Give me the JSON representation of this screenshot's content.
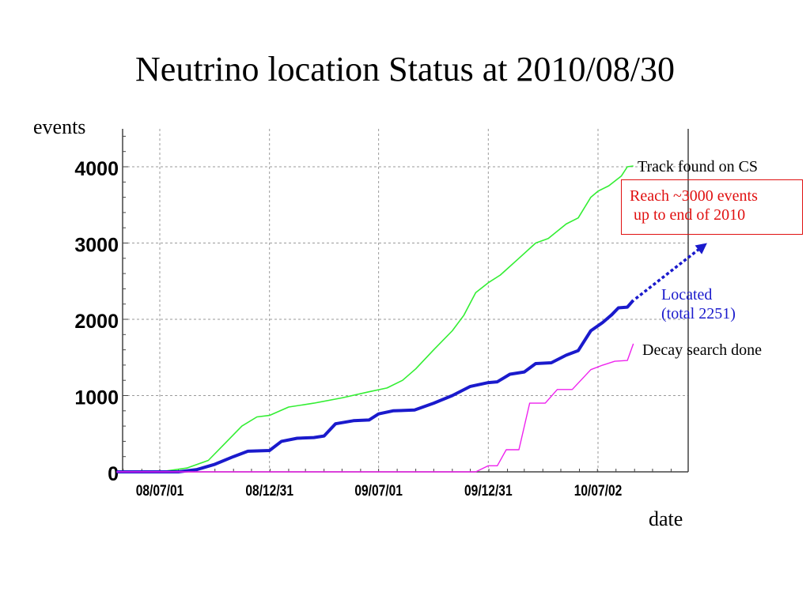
{
  "title": "Neutrino location Status at 2010/08/30",
  "chart_data": {
    "type": "line",
    "title": "Neutrino location Status at 2010/08/30",
    "xlabel": "date",
    "ylabel": "events",
    "x_ticks": [
      "08/07/01",
      "08/12/31",
      "09/07/01",
      "09/12/31",
      "10/07/02"
    ],
    "y_ticks": [
      0,
      1000,
      2000,
      3000,
      4000
    ],
    "ylim": [
      0,
      4500
    ],
    "xlim": [
      "2008-04-20",
      "2011-01-15"
    ],
    "grid": true,
    "series": [
      {
        "name": "Track found on CS",
        "color": "#33ee33",
        "points": [
          [
            "2008-04-20",
            0
          ],
          [
            "2008-07-01",
            0
          ],
          [
            "2008-08-15",
            50
          ],
          [
            "2008-09-20",
            150
          ],
          [
            "2008-10-15",
            350
          ],
          [
            "2008-11-15",
            600
          ],
          [
            "2008-12-10",
            720
          ],
          [
            "2008-12-31",
            740
          ],
          [
            "2009-02-01",
            850
          ],
          [
            "2009-03-15",
            900
          ],
          [
            "2009-05-01",
            970
          ],
          [
            "2009-06-15",
            1050
          ],
          [
            "2009-07-15",
            1100
          ],
          [
            "2009-08-10",
            1200
          ],
          [
            "2009-09-01",
            1350
          ],
          [
            "2009-10-01",
            1600
          ],
          [
            "2009-11-01",
            1850
          ],
          [
            "2009-11-20",
            2050
          ],
          [
            "2009-12-10",
            2350
          ],
          [
            "2009-12-31",
            2480
          ],
          [
            "2010-01-20",
            2580
          ],
          [
            "2010-02-20",
            2800
          ],
          [
            "2010-03-20",
            3000
          ],
          [
            "2010-04-10",
            3060
          ],
          [
            "2010-05-10",
            3250
          ],
          [
            "2010-05-30",
            3330
          ],
          [
            "2010-06-20",
            3600
          ],
          [
            "2010-07-02",
            3680
          ],
          [
            "2010-07-20",
            3750
          ],
          [
            "2010-08-10",
            3880
          ],
          [
            "2010-08-20",
            4000
          ],
          [
            "2010-08-30",
            4010
          ]
        ]
      },
      {
        "name": "Located",
        "color": "#1a1acc",
        "points": [
          [
            "2008-04-20",
            0
          ],
          [
            "2008-08-01",
            0
          ],
          [
            "2008-09-01",
            30
          ],
          [
            "2008-10-01",
            100
          ],
          [
            "2008-11-01",
            200
          ],
          [
            "2008-11-25",
            270
          ],
          [
            "2008-12-31",
            280
          ],
          [
            "2009-01-20",
            400
          ],
          [
            "2009-02-15",
            440
          ],
          [
            "2009-03-15",
            450
          ],
          [
            "2009-04-01",
            470
          ],
          [
            "2009-04-20",
            630
          ],
          [
            "2009-05-20",
            670
          ],
          [
            "2009-06-15",
            680
          ],
          [
            "2009-07-01",
            760
          ],
          [
            "2009-07-25",
            800
          ],
          [
            "2009-08-30",
            810
          ],
          [
            "2009-10-01",
            900
          ],
          [
            "2009-11-01",
            1000
          ],
          [
            "2009-12-01",
            1120
          ],
          [
            "2009-12-31",
            1170
          ],
          [
            "2010-01-15",
            1180
          ],
          [
            "2010-02-05",
            1280
          ],
          [
            "2010-03-01",
            1310
          ],
          [
            "2010-03-20",
            1420
          ],
          [
            "2010-04-15",
            1430
          ],
          [
            "2010-05-10",
            1530
          ],
          [
            "2010-05-30",
            1590
          ],
          [
            "2010-06-20",
            1850
          ],
          [
            "2010-07-10",
            1960
          ],
          [
            "2010-07-25",
            2060
          ],
          [
            "2010-08-05",
            2150
          ],
          [
            "2010-08-20",
            2160
          ],
          [
            "2010-08-30",
            2251
          ]
        ]
      },
      {
        "name": "Decay search done",
        "color": "#ee22ee",
        "points": [
          [
            "2008-04-20",
            0
          ],
          [
            "2009-12-10",
            0
          ],
          [
            "2009-12-31",
            80
          ],
          [
            "2010-01-15",
            80
          ],
          [
            "2010-01-30",
            290
          ],
          [
            "2010-02-20",
            290
          ],
          [
            "2010-03-10",
            900
          ],
          [
            "2010-04-05",
            900
          ],
          [
            "2010-04-25",
            1080
          ],
          [
            "2010-05-20",
            1080
          ],
          [
            "2010-06-20",
            1340
          ],
          [
            "2010-07-10",
            1400
          ],
          [
            "2010-07-30",
            1450
          ],
          [
            "2010-08-20",
            1460
          ],
          [
            "2010-08-30",
            1680
          ]
        ]
      }
    ],
    "projection": {
      "series": "Located",
      "color": "#1a1acc",
      "from": [
        "2010-08-30",
        2251
      ],
      "to": [
        "2010-12-31",
        3000
      ]
    }
  },
  "labels": {
    "track": "Track found on CS",
    "located_line1": "Located",
    "located_line2": "(total 2251)",
    "decay": "Decay search done"
  },
  "callout": {
    "line1": "Reach ~3000 events",
    "line2": "up to end of 2010",
    "color": "#e01010"
  }
}
